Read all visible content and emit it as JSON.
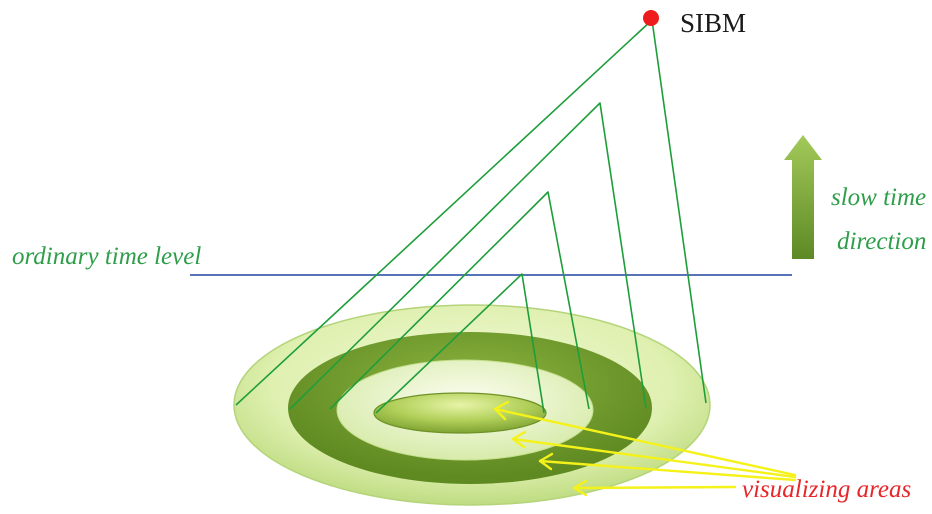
{
  "labels": {
    "sibm": "SIBM",
    "ordinary_time_level": "ordinary time level",
    "slow_time_line1": "slow time",
    "slow_time_line2": "direction",
    "visualizing_areas": "visualizing areas"
  },
  "colors": {
    "cone_line": "#1e9e3a",
    "time_level_line": "#3f5fb0",
    "sibm_point": "#ee1c1c",
    "label_green": "#2e9e4a",
    "label_red": "#e8262a",
    "pointer_arrow": "#f4f21a",
    "outer_ring": "#cfe89a",
    "dark_ring": "#6f9a2c",
    "light_ring": "#e2f2b8",
    "inner_disc": "#a4c64a",
    "up_arrow": "#7aa83a"
  },
  "icons": {
    "sibm_point": "red-dot-icon",
    "slow_time_arrow": "up-arrow-icon",
    "pointer_arrows": "yellow-arrow-icon"
  }
}
